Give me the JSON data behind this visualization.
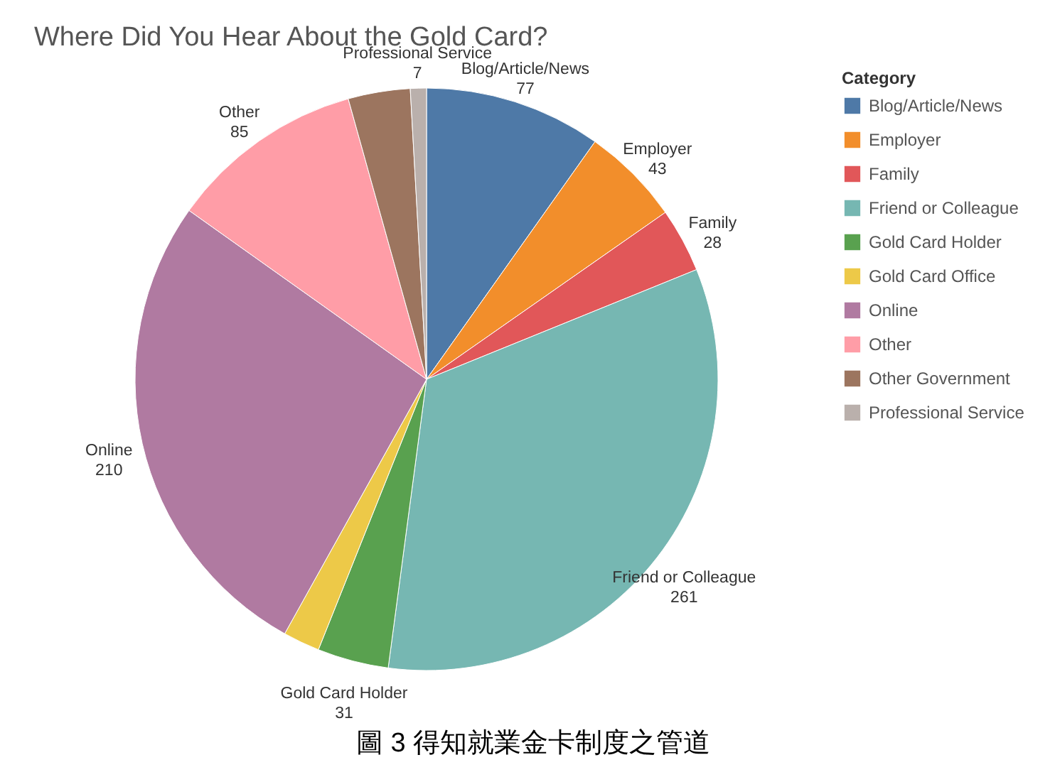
{
  "chart_data": {
    "type": "pie",
    "title": "Where Did You Hear About the Gold Card?",
    "legend_title": "Category",
    "legend": "top right",
    "categories": [
      "Blog/Article/News",
      "Employer",
      "Family",
      "Friend or Colleague",
      "Gold Card Holder",
      "Gold Card Office",
      "Online",
      "Other",
      "Other Government",
      "Professional Service"
    ],
    "values": [
      77,
      43,
      28,
      261,
      31,
      16,
      210,
      85,
      27,
      7
    ],
    "value_labels": [
      "77",
      "43",
      "28",
      "261",
      "31",
      null,
      "210",
      "85",
      null,
      "7"
    ],
    "colors": [
      "#4e79a7",
      "#f28e2b",
      "#e15759",
      "#76b7b2",
      "#59a14f",
      "#edc948",
      "#b07aa1",
      "#ff9da7",
      "#9c755f",
      "#bab0ac"
    ],
    "annotations": [
      "圖 3 得知就業金卡制度之管道"
    ]
  }
}
